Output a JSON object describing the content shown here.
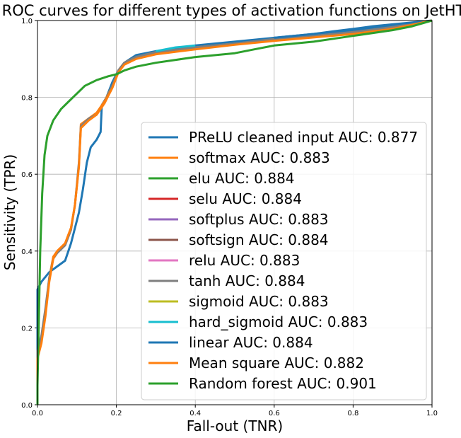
{
  "chart_data": {
    "type": "line",
    "title": "ROC curves for different types of activation functions on JetHT",
    "xlabel": "Fall-out (TNR)",
    "ylabel": "Sensitivity (TPR)",
    "xlim": [
      0.0,
      1.0
    ],
    "ylim": [
      0.0,
      1.0
    ],
    "xticks": [
      "0.0",
      "0.2",
      "0.4",
      "0.6",
      "0.8",
      "1.0"
    ],
    "yticks": [
      "0.0",
      "0.2",
      "0.4",
      "0.6",
      "0.8",
      "1.0"
    ],
    "grid": true,
    "legend_position": "lower-right",
    "series": [
      {
        "name": "PReLU cleaned input AUC: 0.877",
        "color": "#1f77b4",
        "points": [
          [
            0,
            0
          ],
          [
            0.0,
            0.3
          ],
          [
            0.01,
            0.32
          ],
          [
            0.03,
            0.345
          ],
          [
            0.05,
            0.36
          ],
          [
            0.07,
            0.375
          ],
          [
            0.085,
            0.42
          ],
          [
            0.095,
            0.46
          ],
          [
            0.105,
            0.5
          ],
          [
            0.115,
            0.56
          ],
          [
            0.125,
            0.63
          ],
          [
            0.135,
            0.67
          ],
          [
            0.15,
            0.69
          ],
          [
            0.16,
            0.71
          ],
          [
            0.163,
            0.78
          ],
          [
            0.175,
            0.8
          ],
          [
            0.19,
            0.84
          ],
          [
            0.205,
            0.87
          ],
          [
            0.22,
            0.89
          ],
          [
            0.25,
            0.91
          ],
          [
            0.3,
            0.92
          ],
          [
            0.4,
            0.935
          ],
          [
            0.5,
            0.945
          ],
          [
            0.6,
            0.955
          ],
          [
            0.7,
            0.965
          ],
          [
            0.8,
            0.975
          ],
          [
            0.9,
            0.985
          ],
          [
            1.0,
            1.0
          ]
        ]
      },
      {
        "name": "softmax AUC: 0.883",
        "color": "#ff7f0e",
        "points": [
          [
            0,
            0
          ],
          [
            0.0,
            0.13
          ],
          [
            0.01,
            0.17
          ],
          [
            0.02,
            0.24
          ],
          [
            0.03,
            0.33
          ],
          [
            0.04,
            0.385
          ],
          [
            0.05,
            0.4
          ],
          [
            0.07,
            0.42
          ],
          [
            0.085,
            0.46
          ],
          [
            0.095,
            0.52
          ],
          [
            0.105,
            0.62
          ],
          [
            0.11,
            0.73
          ],
          [
            0.13,
            0.745
          ],
          [
            0.15,
            0.76
          ],
          [
            0.17,
            0.79
          ],
          [
            0.19,
            0.83
          ],
          [
            0.205,
            0.87
          ],
          [
            0.22,
            0.89
          ],
          [
            0.25,
            0.905
          ],
          [
            0.3,
            0.915
          ],
          [
            0.4,
            0.93
          ],
          [
            0.5,
            0.94
          ],
          [
            0.6,
            0.95
          ],
          [
            0.7,
            0.958
          ],
          [
            0.8,
            0.968
          ],
          [
            0.9,
            0.982
          ],
          [
            1.0,
            1.0
          ]
        ]
      },
      {
        "name": "elu AUC: 0.884",
        "color": "#2ca02c",
        "points": []
      },
      {
        "name": "selu AUC: 0.884",
        "color": "#d62728",
        "points": []
      },
      {
        "name": "softplus AUC: 0.883",
        "color": "#9467bd",
        "points": []
      },
      {
        "name": "softsign AUC: 0.884",
        "color": "#8c564b",
        "points": []
      },
      {
        "name": "relu AUC: 0.883",
        "color": "#e377c2",
        "points": []
      },
      {
        "name": "tanh AUC: 0.884",
        "color": "#7f7f7f",
        "points": [
          [
            0,
            0
          ],
          [
            0.0,
            0.14
          ],
          [
            0.01,
            0.18
          ],
          [
            0.02,
            0.25
          ],
          [
            0.03,
            0.33
          ],
          [
            0.04,
            0.38
          ],
          [
            0.05,
            0.395
          ],
          [
            0.07,
            0.415
          ],
          [
            0.085,
            0.455
          ],
          [
            0.095,
            0.52
          ],
          [
            0.105,
            0.63
          ],
          [
            0.11,
            0.725
          ],
          [
            0.13,
            0.745
          ],
          [
            0.15,
            0.755
          ],
          [
            0.17,
            0.785
          ],
          [
            0.19,
            0.83
          ],
          [
            0.205,
            0.87
          ],
          [
            0.22,
            0.89
          ],
          [
            0.25,
            0.905
          ],
          [
            0.3,
            0.918
          ],
          [
            0.4,
            0.93
          ],
          [
            0.5,
            0.94
          ],
          [
            0.6,
            0.952
          ],
          [
            0.7,
            0.96
          ],
          [
            0.8,
            0.97
          ],
          [
            0.9,
            0.983
          ],
          [
            1.0,
            1.0
          ]
        ]
      },
      {
        "name": "sigmoid AUC: 0.883",
        "color": "#bcbd22",
        "points": []
      },
      {
        "name": "hard_sigmoid AUC: 0.883",
        "color": "#17becf",
        "points": [
          [
            0.3,
            0.92
          ],
          [
            0.35,
            0.93
          ],
          [
            0.4,
            0.935
          ]
        ]
      },
      {
        "name": "linear AUC: 0.884",
        "color": "#1f77b4",
        "points": [
          [
            0.6,
            0.955
          ],
          [
            0.7,
            0.965
          ],
          [
            0.75,
            0.972
          ],
          [
            0.8,
            0.978
          ],
          [
            0.85,
            0.985
          ],
          [
            0.9,
            0.99
          ],
          [
            0.95,
            0.995
          ],
          [
            1.0,
            1.0
          ]
        ]
      },
      {
        "name": "Mean square AUC: 0.882",
        "color": "#ff7f0e",
        "points": [
          [
            0,
            0
          ],
          [
            0.0,
            0.12
          ],
          [
            0.01,
            0.16
          ],
          [
            0.02,
            0.23
          ],
          [
            0.03,
            0.32
          ],
          [
            0.04,
            0.38
          ],
          [
            0.05,
            0.4
          ],
          [
            0.07,
            0.42
          ],
          [
            0.085,
            0.46
          ],
          [
            0.095,
            0.52
          ],
          [
            0.105,
            0.62
          ],
          [
            0.11,
            0.72
          ],
          [
            0.13,
            0.74
          ],
          [
            0.15,
            0.755
          ],
          [
            0.17,
            0.785
          ],
          [
            0.19,
            0.825
          ],
          [
            0.205,
            0.865
          ],
          [
            0.22,
            0.885
          ],
          [
            0.25,
            0.9
          ],
          [
            0.3,
            0.912
          ],
          [
            0.4,
            0.925
          ],
          [
            0.5,
            0.937
          ],
          [
            0.6,
            0.947
          ],
          [
            0.7,
            0.956
          ],
          [
            0.8,
            0.965
          ],
          [
            0.9,
            0.978
          ],
          [
            1.0,
            1.0
          ]
        ]
      },
      {
        "name": "Random forest AUC: 0.901",
        "color": "#2ca02c",
        "points": [
          [
            0,
            0
          ],
          [
            0.0,
            0.05
          ],
          [
            0.003,
            0.2
          ],
          [
            0.007,
            0.4
          ],
          [
            0.012,
            0.55
          ],
          [
            0.018,
            0.65
          ],
          [
            0.025,
            0.7
          ],
          [
            0.04,
            0.74
          ],
          [
            0.06,
            0.77
          ],
          [
            0.08,
            0.79
          ],
          [
            0.1,
            0.81
          ],
          [
            0.12,
            0.83
          ],
          [
            0.15,
            0.845
          ],
          [
            0.18,
            0.855
          ],
          [
            0.2,
            0.86
          ],
          [
            0.22,
            0.87
          ],
          [
            0.25,
            0.88
          ],
          [
            0.3,
            0.89
          ],
          [
            0.4,
            0.905
          ],
          [
            0.5,
            0.915
          ],
          [
            0.55,
            0.925
          ],
          [
            0.6,
            0.935
          ],
          [
            0.7,
            0.945
          ],
          [
            0.8,
            0.96
          ],
          [
            0.9,
            0.975
          ],
          [
            0.95,
            0.985
          ],
          [
            1.0,
            1.0
          ]
        ]
      }
    ]
  }
}
